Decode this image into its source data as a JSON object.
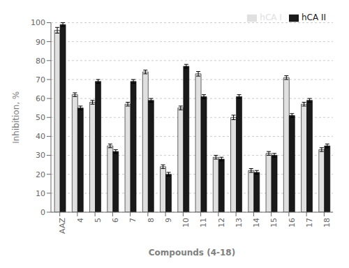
{
  "chart_data": {
    "type": "bar",
    "categories": [
      "AAZ",
      "4",
      "5",
      "6",
      "7",
      "8",
      "9",
      "10",
      "11",
      "12",
      "13",
      "14",
      "15",
      "16",
      "17",
      "18"
    ],
    "series": [
      {
        "name": "hCA I",
        "color": "#e0e0e0",
        "values": [
          96,
          62,
          58,
          35,
          57,
          74,
          24,
          55,
          73,
          29,
          50,
          22,
          31,
          71,
          57,
          33
        ],
        "errors": [
          1.5,
          1.0,
          1.0,
          1.0,
          1.0,
          1.0,
          1.0,
          1.0,
          1.2,
          1.0,
          1.2,
          1.0,
          1.0,
          1.0,
          1.0,
          1.0
        ]
      },
      {
        "name": "hCA II",
        "color": "#1a1a1a",
        "values": [
          99,
          55,
          69,
          32,
          69,
          59,
          20,
          77,
          61,
          28,
          61,
          21,
          30,
          51,
          59,
          35
        ],
        "errors": [
          1.0,
          1.0,
          1.0,
          1.0,
          1.0,
          1.0,
          1.0,
          1.0,
          1.0,
          1.0,
          1.0,
          1.0,
          1.0,
          1.0,
          1.0,
          1.0
        ]
      }
    ],
    "xlabel": "Compounds (4-18)",
    "ylabel": "Inhibition, %",
    "ylim": [
      0,
      100
    ],
    "yticks": [
      0,
      10,
      20,
      30,
      40,
      50,
      60,
      70,
      80,
      90,
      100
    ],
    "grid": true,
    "legend": "upper right"
  }
}
